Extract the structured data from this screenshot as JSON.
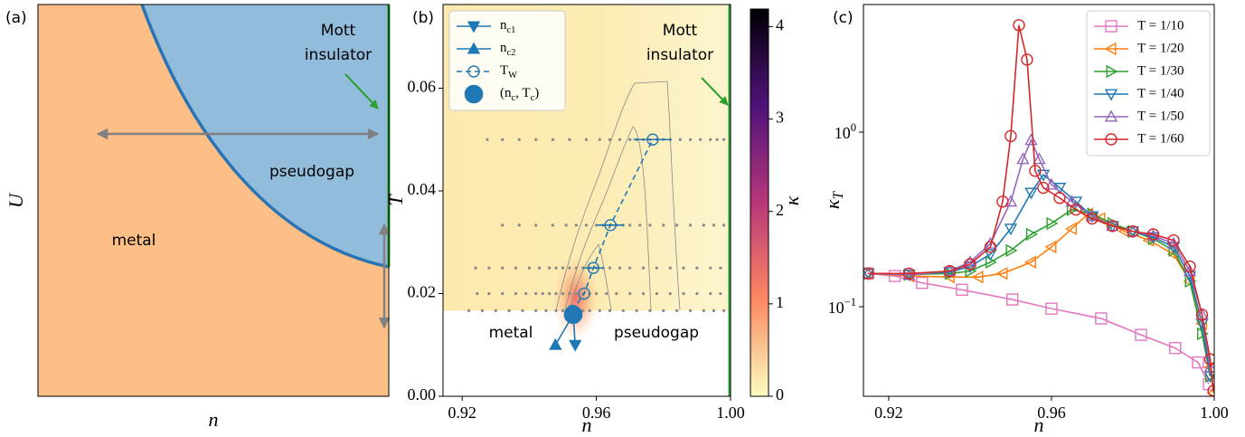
{
  "chart_data": [
    {
      "type": "schematic",
      "panel_label": "(a)",
      "xlabel": "n",
      "ylabel": "U",
      "annotations": [
        "metal",
        "pseudogap",
        "Mott",
        "insulator"
      ]
    },
    {
      "type": "heatmap",
      "panel_label": "(b)",
      "xlabel": "n",
      "ylabel": "T",
      "annotations": [
        "metal",
        "pseudogap",
        "Mott",
        "insulator"
      ],
      "xlim": [
        0.9143,
        1.0
      ],
      "ylim": [
        0,
        0.0763
      ],
      "xticks": [
        0.92,
        0.96,
        {
          "value": 1.0,
          "label": "1.00"
        }
      ],
      "yticks": [
        {
          "value": 0,
          "label": "0.00"
        },
        0.02,
        0.04,
        0.06
      ],
      "colorbar": {
        "label": "κ",
        "lim": [
          0,
          4.19
        ],
        "ticks": [
          0,
          1,
          2,
          3,
          4
        ],
        "colormap": [
          "#fcfdbf",
          "#fc8961",
          "#b73779",
          "#51127c",
          "#000004"
        ]
      },
      "series": [
        {
          "name": "n_{c1}",
          "color": "#1f77b4",
          "marker": "v",
          "linestyle": "-",
          "x": [
            0.9531,
            0.9537
          ],
          "values": [
            0.0159,
            0.01
          ]
        },
        {
          "name": "n_{c2}",
          "color": "#1f77b4",
          "marker": "^",
          "linestyle": "-",
          "x": [
            0.9531,
            0.9478
          ],
          "values": [
            0.0159,
            0.01
          ]
        },
        {
          "name": "T_{W}",
          "color": "#1f77b4",
          "marker": "o",
          "markerfacecolor": "none",
          "linestyle": "--",
          "x": [
            0.9529,
            0.9564,
            0.9591,
            0.9642,
            0.9768
          ],
          "xerr": [
            0,
            0,
            0.003,
            0.004,
            0.0057
          ],
          "values": [
            0.01667,
            0.02,
            0.025,
            0.03333,
            0.05
          ]
        },
        {
          "name": "(n_{c}, T_{c})",
          "color": "#1f77b4",
          "marker": "o",
          "linestyle": "none",
          "x": [
            0.9531
          ],
          "values": [
            0.0159
          ]
        }
      ],
      "samples": [
        {
          "T": 0.05,
          "n": [
            0.9275,
            0.932,
            0.937,
            0.942,
            0.947,
            0.952,
            0.957,
            0.961,
            0.964,
            0.967,
            0.97,
            0.972,
            0.974,
            0.976,
            0.978,
            0.98,
            0.982,
            0.985,
            0.988,
            0.991,
            0.994,
            0.996,
            0.998
          ]
        },
        {
          "T": 0.03333,
          "n": [
            0.932,
            0.937,
            0.942,
            0.947,
            0.951,
            0.954,
            0.957,
            0.96,
            0.962,
            0.964,
            0.966,
            0.968,
            0.97,
            0.973,
            0.976,
            0.98,
            0.984,
            0.988,
            0.992,
            0.995,
            0.998
          ]
        },
        {
          "T": 0.025,
          "n": [
            0.924,
            0.928,
            0.932,
            0.936,
            0.94,
            0.943,
            0.946,
            0.948,
            0.95,
            0.952,
            0.954,
            0.956,
            0.958,
            0.96,
            0.962,
            0.964,
            0.967,
            0.97,
            0.974,
            0.978,
            0.982,
            0.986,
            0.99,
            0.994,
            0.997
          ]
        },
        {
          "T": 0.02,
          "n": [
            0.9245,
            0.928,
            0.932,
            0.936,
            0.939,
            0.942,
            0.944,
            0.946,
            0.948,
            0.95,
            0.952,
            0.954,
            0.956,
            0.958,
            0.96,
            0.963,
            0.966,
            0.97,
            0.974,
            0.978,
            0.982,
            0.986,
            0.99,
            0.994,
            0.997
          ]
        },
        {
          "T": 0.01667,
          "n": [
            0.922,
            0.926,
            0.93,
            0.934,
            0.938,
            0.942,
            0.945,
            0.948,
            0.95,
            0.952,
            0.954,
            0.956,
            0.958,
            0.961,
            0.964,
            0.968,
            0.972,
            0.976,
            0.98,
            0.984,
            0.988,
            0.992,
            0.995,
            0.998
          ]
        }
      ]
    },
    {
      "type": "line",
      "panel_label": "(c)",
      "xlabel": "n",
      "ylabel": "κ_{T}",
      "yscale": "log",
      "xlim": [
        0.9138,
        1.0
      ],
      "ylim": [
        0.0307,
        5.38
      ],
      "xticks": [
        0.92,
        0.96,
        {
          "value": 1.0,
          "label": "1.00"
        }
      ],
      "yticks": [
        {
          "value": 1,
          "label": "10^{0}"
        },
        {
          "value": 0.1,
          "label": "10^{−1}"
        }
      ],
      "series": [
        {
          "name": "T = 1/10",
          "color": "#e377c2",
          "marker": "s",
          "markerfacecolor": "none",
          "x": [
            0.9148,
            0.9215,
            0.9282,
            0.938,
            0.9504,
            0.96,
            0.9722,
            0.982,
            0.9904,
            0.996,
            0.9987
          ],
          "values": [
            0.155,
            0.15,
            0.137,
            0.125,
            0.11,
            0.0975,
            0.0857,
            0.069,
            0.058,
            0.048,
            0.036
          ]
        },
        {
          "name": "T = 1/20",
          "color": "#ff7f0e",
          "marker": "<",
          "markerfacecolor": "none",
          "x": [
            0.915,
            0.925,
            0.935,
            0.942,
            0.948,
            0.955,
            0.96,
            0.965,
            0.969,
            0.972,
            0.978,
            0.984,
            0.99,
            0.994,
            0.997,
            0.999,
            0.9998
          ],
          "values": [
            0.155,
            0.15,
            0.148,
            0.148,
            0.155,
            0.18,
            0.22,
            0.28,
            0.34,
            0.32,
            0.27,
            0.24,
            0.2,
            0.14,
            0.08,
            0.045,
            0.032
          ]
        },
        {
          "name": "T = 1/30",
          "color": "#2ca02c",
          "marker": ">",
          "markerfacecolor": "none",
          "x": [
            0.915,
            0.925,
            0.935,
            0.94,
            0.945,
            0.95,
            0.955,
            0.96,
            0.965,
            0.97,
            0.975,
            0.98,
            0.985,
            0.99,
            0.994,
            0.997,
            0.999
          ],
          "values": [
            0.155,
            0.153,
            0.155,
            0.16,
            0.18,
            0.21,
            0.26,
            0.3,
            0.36,
            0.34,
            0.3,
            0.27,
            0.245,
            0.21,
            0.14,
            0.07,
            0.04
          ]
        },
        {
          "name": "T = 1/40",
          "color": "#1f77b4",
          "marker": "v",
          "markerfacecolor": "none",
          "x": [
            0.915,
            0.925,
            0.935,
            0.94,
            0.945,
            0.95,
            0.955,
            0.958,
            0.962,
            0.966,
            0.97,
            0.975,
            0.98,
            0.985,
            0.99,
            0.994,
            0.997,
            0.999
          ],
          "values": [
            0.155,
            0.153,
            0.158,
            0.17,
            0.2,
            0.28,
            0.45,
            0.57,
            0.48,
            0.4,
            0.33,
            0.29,
            0.27,
            0.25,
            0.22,
            0.15,
            0.08,
            0.04
          ]
        },
        {
          "name": "T = 1/50",
          "color": "#9467bd",
          "marker": "^",
          "markerfacecolor": "none",
          "x": [
            0.915,
            0.925,
            0.935,
            0.94,
            0.945,
            0.95,
            0.953,
            0.955,
            0.957,
            0.96,
            0.965,
            0.97,
            0.975,
            0.98,
            0.985,
            0.99,
            0.994,
            0.997,
            0.999
          ],
          "values": [
            0.155,
            0.152,
            0.16,
            0.18,
            0.23,
            0.4,
            0.7,
            0.9,
            0.7,
            0.5,
            0.4,
            0.33,
            0.29,
            0.27,
            0.255,
            0.23,
            0.16,
            0.09,
            0.045
          ]
        },
        {
          "name": "T = 1/60",
          "color": "#d62728",
          "marker": "o",
          "markerfacecolor": "none",
          "x": [
            0.915,
            0.925,
            0.935,
            0.94,
            0.945,
            0.948,
            0.95,
            0.952,
            0.954,
            0.956,
            0.958,
            0.962,
            0.966,
            0.97,
            0.975,
            0.98,
            0.985,
            0.99,
            0.994,
            0.997,
            0.999,
            0.9998
          ],
          "values": [
            0.155,
            0.155,
            0.16,
            0.175,
            0.22,
            0.4,
            0.95,
            4.1,
            2.6,
            0.6,
            0.48,
            0.42,
            0.36,
            0.32,
            0.29,
            0.27,
            0.26,
            0.24,
            0.17,
            0.09,
            0.05,
            0.033
          ]
        }
      ]
    }
  ]
}
